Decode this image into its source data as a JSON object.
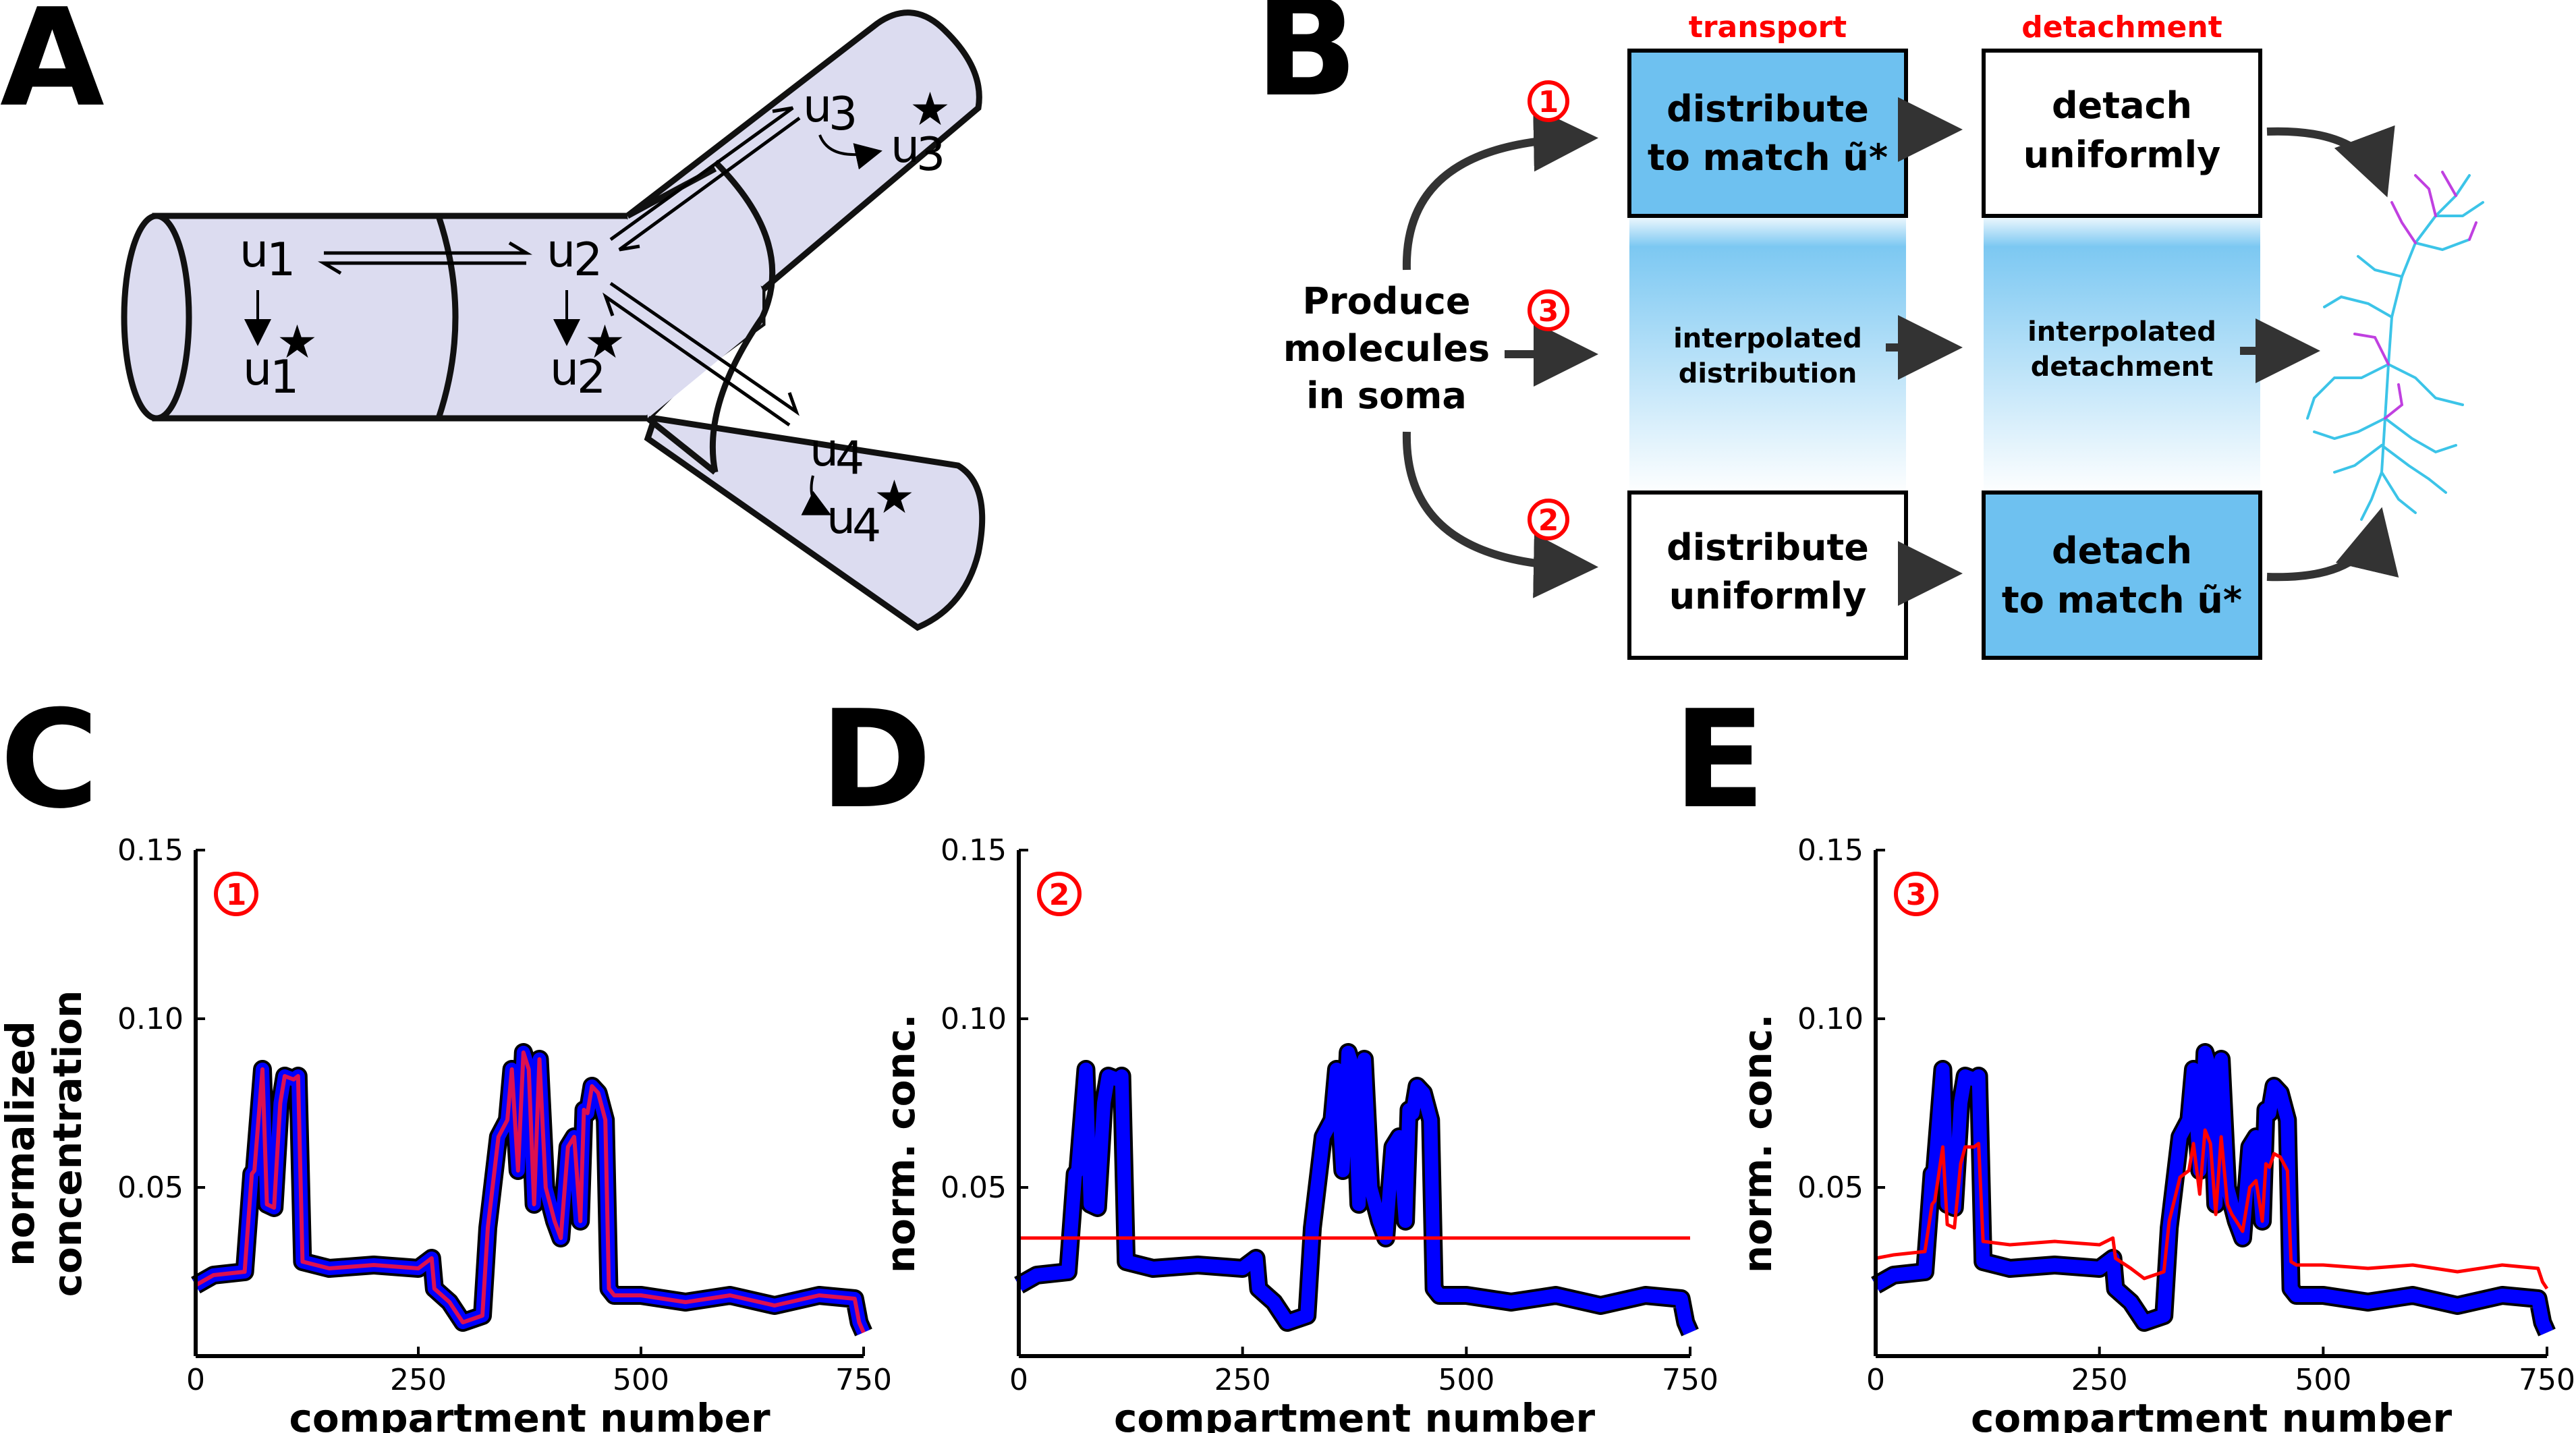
{
  "panels": {
    "a": "A",
    "b": "B",
    "c": "C",
    "d": "D",
    "e": "E"
  },
  "panel_a": {
    "compartments": [
      {
        "u": "u",
        "sub": "1"
      },
      {
        "u": "u",
        "sub": "2"
      },
      {
        "u": "u",
        "sub": "3"
      },
      {
        "u": "u",
        "sub": "4"
      }
    ],
    "star": "★"
  },
  "panel_b": {
    "headers": {
      "transport": "transport",
      "detachment": "detachment"
    },
    "source": [
      "Produce",
      "molecules",
      "in soma"
    ],
    "boxes": {
      "t1": [
        "distribute",
        "to match ũ*"
      ],
      "d1": [
        "detach",
        "uniformly"
      ],
      "t3": [
        "interpolated",
        "distribution"
      ],
      "d3": [
        "interpolated",
        "detachment"
      ],
      "t2": [
        "distribute",
        "uniformly"
      ],
      "d2": [
        "detach",
        "to match ũ*"
      ]
    },
    "numbers": [
      "1",
      "2",
      "3"
    ],
    "colors": {
      "highlight": "#6ec1f0",
      "red": "#ff0000",
      "neuron_cyan": "#3cc4e8",
      "neuron_purple": "#c040e0"
    }
  },
  "chart_data": [
    {
      "type": "line",
      "panel": "C",
      "badge": "1",
      "xlabel": "compartment number",
      "ylabel": [
        "normalized",
        "concentration"
      ],
      "xlim": [
        0,
        750
      ],
      "ylim": [
        0,
        0.15
      ],
      "xticks": [
        0,
        250,
        500,
        750
      ],
      "yticks": [
        0.05,
        0.1,
        0.15
      ],
      "xtick_labels": [
        "0",
        "250",
        "500",
        "750"
      ],
      "ytick_labels": [
        "0.05",
        "0.10",
        "0.15"
      ],
      "series": [
        {
          "role": "target",
          "color": "#0000ff",
          "width": 20,
          "curve": "target"
        },
        {
          "role": "model",
          "color": "#dd1050",
          "width": 6,
          "curve": "match"
        }
      ]
    },
    {
      "type": "line",
      "panel": "D",
      "badge": "2",
      "xlabel": "compartment number",
      "ylabel": [
        "norm. conc."
      ],
      "xlim": [
        0,
        750
      ],
      "ylim": [
        0,
        0.15
      ],
      "xticks": [
        0,
        250,
        500,
        750
      ],
      "yticks": [
        0.05,
        0.1,
        0.15
      ],
      "xtick_labels": [
        "0",
        "250",
        "500",
        "750"
      ],
      "ytick_labels": [
        "0.05",
        "0.10",
        "0.15"
      ],
      "series": [
        {
          "role": "target",
          "color": "#0000ff",
          "width": 20,
          "curve": "target"
        },
        {
          "role": "model",
          "color": "#ff0000",
          "width": 5,
          "curve": "flat",
          "value": 0.035
        }
      ]
    },
    {
      "type": "line",
      "panel": "E",
      "badge": "3",
      "xlabel": "compartment number",
      "ylabel": [
        "norm. conc."
      ],
      "xlim": [
        0,
        750
      ],
      "ylim": [
        0,
        0.15
      ],
      "xticks": [
        0,
        250,
        500,
        750
      ],
      "yticks": [
        0.05,
        0.1,
        0.15
      ],
      "xtick_labels": [
        "0",
        "250",
        "500",
        "750"
      ],
      "ytick_labels": [
        "0.05",
        "0.10",
        "0.15"
      ],
      "series": [
        {
          "role": "target",
          "color": "#0000ff",
          "width": 20,
          "curve": "target"
        },
        {
          "role": "model",
          "color": "#ff0000",
          "width": 5,
          "curve": "interp"
        }
      ]
    }
  ],
  "curve_key": {
    "x": [
      0,
      20,
      55,
      63,
      66,
      75,
      80,
      88,
      95,
      100,
      110,
      115,
      120,
      150,
      200,
      250,
      265,
      268,
      285,
      300,
      322,
      328,
      340,
      350,
      355,
      362,
      368,
      374,
      380,
      386,
      393,
      398,
      403,
      410,
      418,
      425,
      432,
      436,
      440,
      445,
      452,
      460,
      464,
      470,
      500,
      550,
      600,
      650,
      700,
      740,
      745,
      750
    ],
    "target": [
      0.021,
      0.024,
      0.025,
      0.054,
      0.055,
      0.085,
      0.045,
      0.044,
      0.075,
      0.083,
      0.082,
      0.083,
      0.028,
      0.026,
      0.027,
      0.026,
      0.029,
      0.02,
      0.016,
      0.01,
      0.012,
      0.038,
      0.065,
      0.07,
      0.085,
      0.055,
      0.09,
      0.085,
      0.045,
      0.088,
      0.05,
      0.045,
      0.04,
      0.035,
      0.062,
      0.065,
      0.04,
      0.073,
      0.072,
      0.08,
      0.078,
      0.07,
      0.02,
      0.018,
      0.018,
      0.016,
      0.018,
      0.015,
      0.018,
      0.017,
      0.01,
      0.007
    ],
    "interp": [
      0.029,
      0.03,
      0.031,
      0.045,
      0.046,
      0.062,
      0.039,
      0.038,
      0.057,
      0.062,
      0.062,
      0.063,
      0.034,
      0.033,
      0.034,
      0.033,
      0.035,
      0.029,
      0.026,
      0.023,
      0.025,
      0.04,
      0.053,
      0.055,
      0.063,
      0.048,
      0.067,
      0.063,
      0.042,
      0.065,
      0.045,
      0.042,
      0.04,
      0.037,
      0.05,
      0.052,
      0.04,
      0.057,
      0.056,
      0.06,
      0.059,
      0.055,
      0.028,
      0.027,
      0.027,
      0.026,
      0.027,
      0.025,
      0.027,
      0.026,
      0.022,
      0.02
    ]
  }
}
